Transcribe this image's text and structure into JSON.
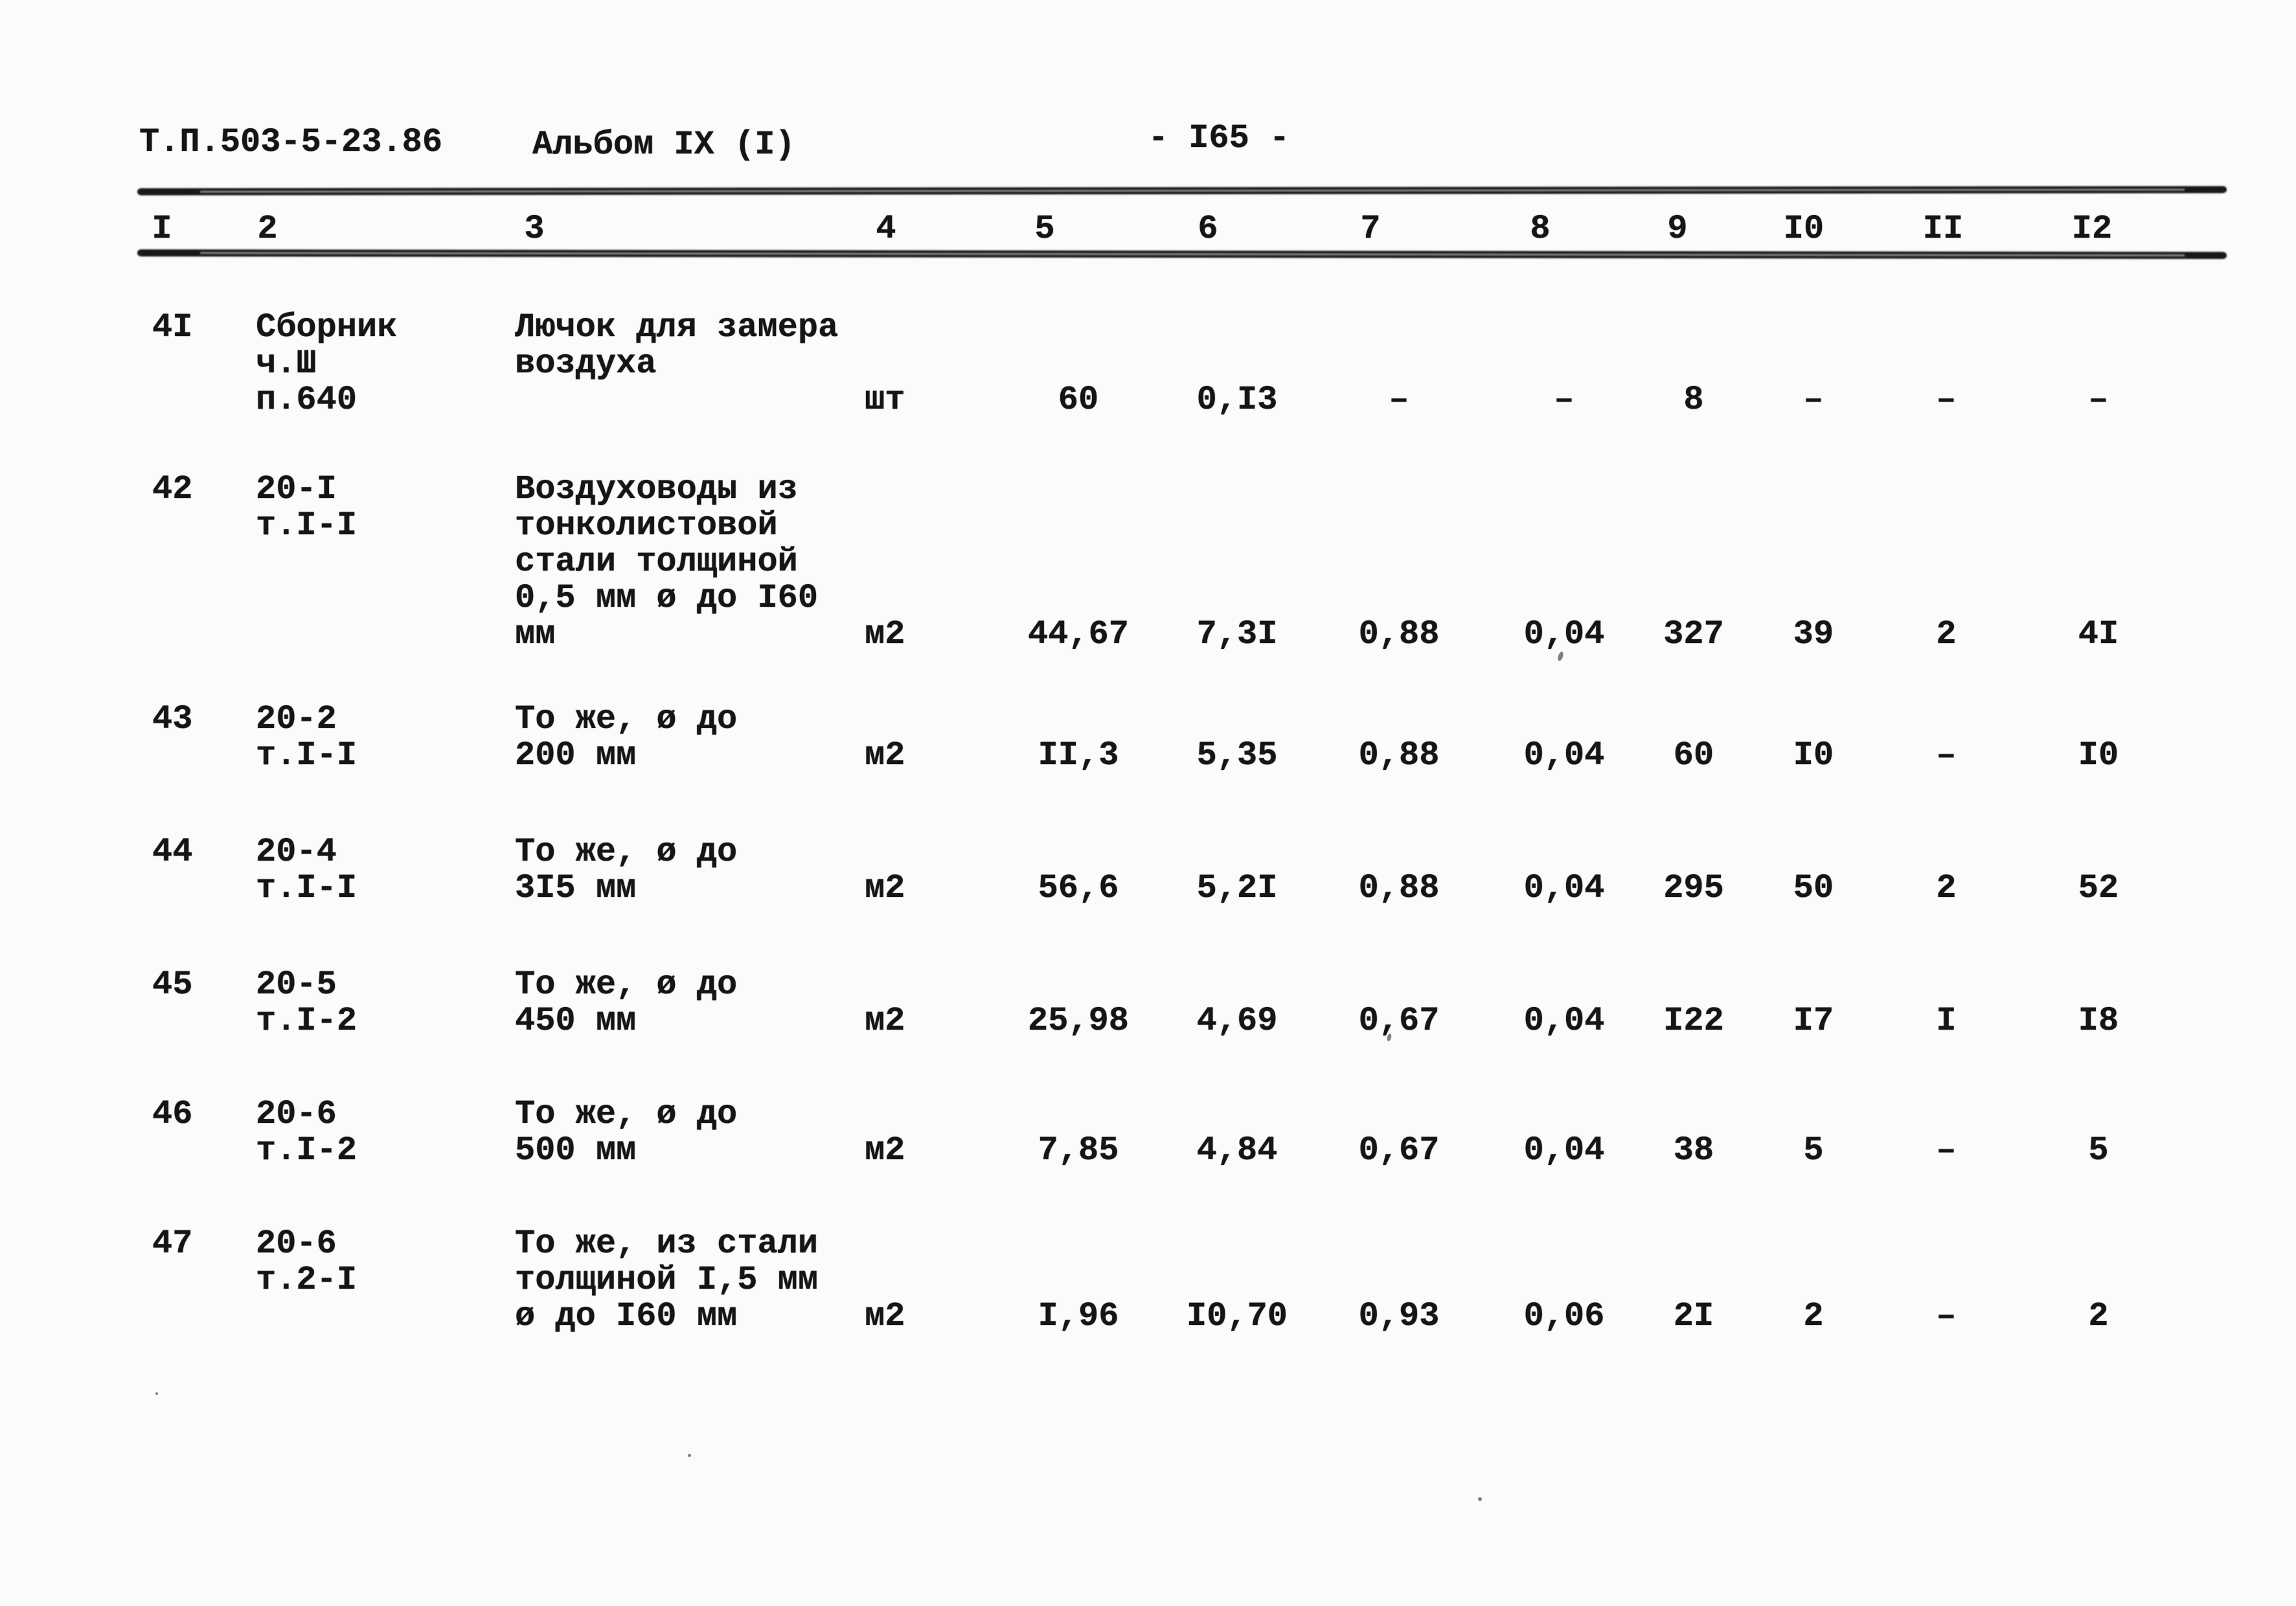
{
  "header": {
    "doc_code": "Т.П.503-5-23.86",
    "album": "Альбом IX (I)",
    "page_number": "- I65 -"
  },
  "table": {
    "column_numbers": [
      "I",
      "2",
      "3",
      "4",
      "5",
      "6",
      "7",
      "8",
      "9",
      "I0",
      "II",
      "I2"
    ],
    "rows": [
      {
        "num": "4I",
        "ref": [
          "Сборник",
          "ч.Ш",
          "п.640"
        ],
        "name": [
          "Лючок для замера",
          "воздуха"
        ],
        "unit": "шт",
        "values": [
          "60",
          "0,I3",
          "–",
          "–",
          "8",
          "–",
          "–",
          "–"
        ]
      },
      {
        "num": "42",
        "ref": [
          "20-I",
          "т.I-I"
        ],
        "name": [
          "Воздуховоды из",
          "тонколистовой",
          "стали толщиной",
          "0,5 мм ø до I60",
          "мм"
        ],
        "unit": "м2",
        "values": [
          "44,67",
          "7,3I",
          "0,88",
          "0,04",
          "327",
          "39",
          "2",
          "4I"
        ]
      },
      {
        "num": "43",
        "ref": [
          "20-2",
          "т.I-I"
        ],
        "name": [
          "То же, ø до",
          "200 мм"
        ],
        "unit": "м2",
        "values": [
          "II,3",
          "5,35",
          "0,88",
          "0,04",
          "60",
          "I0",
          "–",
          "I0"
        ]
      },
      {
        "num": "44",
        "ref": [
          "20-4",
          "т.I-I"
        ],
        "name": [
          "То же, ø до",
          "3I5 мм"
        ],
        "unit": "м2",
        "values": [
          "56,6",
          "5,2I",
          "0,88",
          "0,04",
          "295",
          "50",
          "2",
          "52"
        ]
      },
      {
        "num": "45",
        "ref": [
          "20-5",
          "т.I-2"
        ],
        "name": [
          "То же, ø до",
          "450 мм"
        ],
        "unit": "м2",
        "values": [
          "25,98",
          "4,69",
          "0,67",
          "0,04",
          "I22",
          "I7",
          "I",
          "I8"
        ]
      },
      {
        "num": "46",
        "ref": [
          "20-6",
          "т.I-2"
        ],
        "name": [
          "То же, ø до",
          "500 мм"
        ],
        "unit": "м2",
        "values": [
          "7,85",
          "4,84",
          "0,67",
          "0,04",
          "38",
          "5",
          "–",
          "5"
        ]
      },
      {
        "num": "47",
        "ref": [
          "20-6",
          "т.2-I"
        ],
        "name": [
          "То же, из стали",
          "толщиной I,5 мм",
          "ø до I60 мм"
        ],
        "unit": "м2",
        "values": [
          "I,96",
          "I0,70",
          "0,93",
          "0,06",
          "2I",
          "2",
          "–",
          "2"
        ]
      }
    ]
  }
}
